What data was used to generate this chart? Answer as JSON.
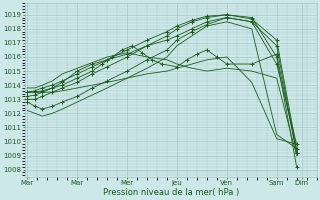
{
  "xlabel": "Pression niveau de la mer( hPa )",
  "bg_color": "#cde8e8",
  "grid_color": "#a8c8c8",
  "line_color": "#1a5c1a",
  "ylim": [
    1007.5,
    1019.8
  ],
  "ytick_vals": [
    1008,
    1009,
    1010,
    1011,
    1012,
    1013,
    1014,
    1015,
    1016,
    1017,
    1018,
    1019
  ],
  "xtick_labels": [
    "Mar",
    "Mar",
    "Mer",
    "Jeu",
    "Ven",
    "Sam",
    "Dim"
  ],
  "xtick_x": [
    0,
    1,
    2,
    3,
    4,
    5,
    5.5
  ],
  "xlim": [
    -0.05,
    5.8
  ],
  "series": [
    {
      "x": [
        0,
        0.15,
        0.3,
        0.5,
        0.7,
        1.0,
        1.3,
        1.6,
        2.0,
        2.4,
        2.8,
        3.0,
        3.3,
        3.6,
        4.0,
        4.5,
        5.0,
        5.4
      ],
      "y": [
        1013.5,
        1013.6,
        1013.8,
        1014.0,
        1014.3,
        1014.8,
        1015.3,
        1015.8,
        1016.5,
        1017.2,
        1017.8,
        1018.2,
        1018.6,
        1018.9,
        1019.0,
        1018.7,
        1017.2,
        1009.5
      ],
      "marker": true
    },
    {
      "x": [
        0,
        0.15,
        0.3,
        0.5,
        0.7,
        1.0,
        1.3,
        1.6,
        2.0,
        2.4,
        2.8,
        3.0,
        3.3,
        3.6,
        4.0,
        4.5,
        5.0,
        5.4
      ],
      "y": [
        1013.2,
        1013.3,
        1013.5,
        1013.8,
        1014.2,
        1015.0,
        1015.5,
        1015.8,
        1016.2,
        1016.8,
        1017.2,
        1017.5,
        1018.0,
        1018.5,
        1018.8,
        1018.5,
        1016.8,
        1009.2
      ],
      "marker": true
    },
    {
      "x": [
        0,
        0.15,
        0.3,
        0.5,
        0.7,
        1.0,
        1.3,
        1.6,
        2.0,
        2.4,
        2.8,
        3.0,
        3.3,
        3.6,
        4.0,
        4.5,
        5.0,
        5.4
      ],
      "y": [
        1013.8,
        1013.8,
        1014.0,
        1014.3,
        1014.8,
        1015.2,
        1015.6,
        1016.0,
        1016.3,
        1016.0,
        1015.8,
        1015.5,
        1015.2,
        1015.0,
        1015.2,
        1015.0,
        1014.5,
        1009.0
      ],
      "marker": false
    },
    {
      "x": [
        0,
        0.15,
        0.3,
        0.5,
        0.7,
        1.0,
        1.3,
        1.5,
        1.7,
        1.9,
        2.1,
        2.3,
        2.5,
        2.7,
        3.0,
        3.2,
        3.4,
        3.6,
        3.8,
        4.0,
        4.5,
        5.0,
        5.4
      ],
      "y": [
        1013.5,
        1013.5,
        1013.6,
        1013.8,
        1014.0,
        1014.5,
        1015.0,
        1015.5,
        1016.0,
        1016.5,
        1016.8,
        1016.3,
        1015.8,
        1015.5,
        1015.3,
        1015.8,
        1016.2,
        1016.5,
        1016.0,
        1015.5,
        1015.5,
        1016.2,
        1009.2
      ],
      "marker": true
    },
    {
      "x": [
        0,
        0.15,
        0.3,
        0.5,
        0.7,
        1.0,
        1.3,
        1.6,
        2.0,
        2.4,
        2.8,
        3.0,
        3.3,
        3.6,
        4.0,
        4.5,
        5.0,
        5.4
      ],
      "y": [
        1013.0,
        1013.0,
        1013.2,
        1013.5,
        1013.8,
        1014.2,
        1014.8,
        1015.3,
        1016.0,
        1016.8,
        1017.5,
        1018.0,
        1018.5,
        1018.8,
        1019.0,
        1018.8,
        1016.0,
        1008.2
      ],
      "marker": true
    },
    {
      "x": [
        0,
        0.15,
        0.3,
        0.5,
        0.7,
        1.0,
        1.3,
        1.6,
        2.0,
        2.4,
        2.8,
        3.0,
        3.3,
        3.6,
        4.0,
        4.5,
        5.0,
        5.4
      ],
      "y": [
        1012.8,
        1012.5,
        1012.3,
        1012.5,
        1012.8,
        1013.2,
        1013.8,
        1014.3,
        1015.0,
        1015.8,
        1016.5,
        1017.2,
        1017.8,
        1018.3,
        1018.8,
        1018.5,
        1015.5,
        1009.8
      ],
      "marker": true
    },
    {
      "x": [
        0,
        0.15,
        0.3,
        0.5,
        0.7,
        1.0,
        1.3,
        1.6,
        2.0,
        2.4,
        2.8,
        3.0,
        3.3,
        3.6,
        4.0,
        4.5,
        5.0,
        5.4
      ],
      "y": [
        1012.2,
        1012.0,
        1011.8,
        1012.0,
        1012.3,
        1012.8,
        1013.3,
        1013.8,
        1014.5,
        1015.2,
        1016.0,
        1016.8,
        1017.5,
        1018.2,
        1018.5,
        1018.0,
        1010.5,
        1009.5
      ],
      "marker": false
    },
    {
      "x": [
        0,
        0.15,
        0.3,
        0.5,
        0.7,
        1.0,
        1.3,
        1.6,
        2.0,
        2.4,
        2.8,
        3.0,
        3.3,
        3.6,
        4.0,
        4.5,
        5.0,
        5.4
      ],
      "y": [
        1013.5,
        1013.5,
        1013.5,
        1013.5,
        1013.6,
        1013.8,
        1014.0,
        1014.2,
        1014.5,
        1014.8,
        1015.0,
        1015.2,
        1015.5,
        1015.8,
        1016.0,
        1014.2,
        1010.2,
        1009.8
      ],
      "marker": false
    }
  ]
}
